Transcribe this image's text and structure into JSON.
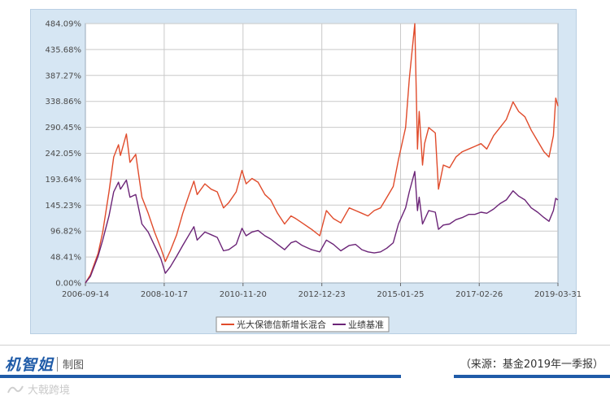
{
  "chart_data": {
    "type": "line",
    "title": "",
    "xlabel": "",
    "ylabel": "",
    "y_tick_labels": [
      "0.00%",
      "48.41%",
      "96.82%",
      "145.23%",
      "193.64%",
      "242.05%",
      "290.45%",
      "338.86%",
      "387.27%",
      "435.68%",
      "484.09%"
    ],
    "x_tick_labels": [
      "2006-09-14",
      "2008-10-17",
      "2010-11-20",
      "2012-12-23",
      "2015-01-25",
      "2017-02-26",
      "2019-03-31"
    ],
    "ylim": [
      0,
      484.09
    ],
    "xlim": [
      "2006-09-14",
      "2019-03-31"
    ],
    "grid": true,
    "legend_position": "bottom-center",
    "series": [
      {
        "name": "光大保德信新增长混合",
        "color": "#e04b2b",
        "points": [
          [
            "2006-09-14",
            0
          ],
          [
            "2006-11-01",
            15
          ],
          [
            "2007-01-15",
            55
          ],
          [
            "2007-03-01",
            95
          ],
          [
            "2007-05-01",
            170
          ],
          [
            "2007-06-15",
            235
          ],
          [
            "2007-08-01",
            258
          ],
          [
            "2007-08-20",
            238
          ],
          [
            "2007-10-16",
            278
          ],
          [
            "2007-11-20",
            225
          ],
          [
            "2008-01-15",
            240
          ],
          [
            "2008-03-15",
            160
          ],
          [
            "2008-05-15",
            130
          ],
          [
            "2008-07-15",
            95
          ],
          [
            "2008-09-15",
            65
          ],
          [
            "2008-10-28",
            40
          ],
          [
            "2008-12-15",
            60
          ],
          [
            "2009-02-15",
            90
          ],
          [
            "2009-04-15",
            130
          ],
          [
            "2009-06-15",
            165
          ],
          [
            "2009-08-01",
            190
          ],
          [
            "2009-09-01",
            165
          ],
          [
            "2009-11-15",
            185
          ],
          [
            "2010-01-15",
            175
          ],
          [
            "2010-03-15",
            170
          ],
          [
            "2010-05-15",
            140
          ],
          [
            "2010-07-05",
            150
          ],
          [
            "2010-09-15",
            170
          ],
          [
            "2010-11-10",
            210
          ],
          [
            "2010-12-20",
            185
          ],
          [
            "2011-02-15",
            195
          ],
          [
            "2011-04-15",
            188
          ],
          [
            "2011-06-20",
            165
          ],
          [
            "2011-08-15",
            155
          ],
          [
            "2011-10-20",
            130
          ],
          [
            "2011-12-28",
            110
          ],
          [
            "2012-02-28",
            125
          ],
          [
            "2012-04-15",
            120
          ],
          [
            "2012-06-15",
            112
          ],
          [
            "2012-09-15",
            100
          ],
          [
            "2012-12-03",
            88
          ],
          [
            "2013-02-05",
            135
          ],
          [
            "2013-04-15",
            120
          ],
          [
            "2013-06-25",
            112
          ],
          [
            "2013-09-15",
            140
          ],
          [
            "2013-11-15",
            135
          ],
          [
            "2014-01-15",
            130
          ],
          [
            "2014-03-15",
            125
          ],
          [
            "2014-05-15",
            135
          ],
          [
            "2014-07-15",
            140
          ],
          [
            "2014-09-15",
            160
          ],
          [
            "2014-11-15",
            180
          ],
          [
            "2015-01-05",
            230
          ],
          [
            "2015-03-15",
            290
          ],
          [
            "2015-04-20",
            380
          ],
          [
            "2015-06-12",
            484
          ],
          [
            "2015-07-08",
            250
          ],
          [
            "2015-07-25",
            320
          ],
          [
            "2015-08-26",
            220
          ],
          [
            "2015-09-15",
            260
          ],
          [
            "2015-10-25",
            290
          ],
          [
            "2015-12-28",
            280
          ],
          [
            "2016-01-28",
            175
          ],
          [
            "2016-03-15",
            220
          ],
          [
            "2016-05-15",
            215
          ],
          [
            "2016-07-15",
            235
          ],
          [
            "2016-09-15",
            245
          ],
          [
            "2016-11-15",
            250
          ],
          [
            "2017-01-15",
            255
          ],
          [
            "2017-03-15",
            260
          ],
          [
            "2017-05-10",
            250
          ],
          [
            "2017-07-15",
            275
          ],
          [
            "2017-09-15",
            290
          ],
          [
            "2017-11-15",
            305
          ],
          [
            "2018-01-20",
            338
          ],
          [
            "2018-03-15",
            320
          ],
          [
            "2018-05-15",
            310
          ],
          [
            "2018-07-15",
            285
          ],
          [
            "2018-09-15",
            265
          ],
          [
            "2018-11-15",
            245
          ],
          [
            "2019-01-03",
            235
          ],
          [
            "2019-02-15",
            275
          ],
          [
            "2019-03-10",
            345
          ],
          [
            "2019-03-31",
            330
          ]
        ]
      },
      {
        "name": "业绩基准",
        "color": "#6b2477",
        "points": [
          [
            "2006-09-14",
            0
          ],
          [
            "2006-11-01",
            12
          ],
          [
            "2007-01-15",
            50
          ],
          [
            "2007-03-01",
            80
          ],
          [
            "2007-05-01",
            125
          ],
          [
            "2007-06-15",
            170
          ],
          [
            "2007-08-01",
            188
          ],
          [
            "2007-08-20",
            175
          ],
          [
            "2007-10-16",
            192
          ],
          [
            "2007-11-20",
            160
          ],
          [
            "2008-01-15",
            165
          ],
          [
            "2008-03-15",
            110
          ],
          [
            "2008-05-15",
            95
          ],
          [
            "2008-07-15",
            70
          ],
          [
            "2008-09-15",
            45
          ],
          [
            "2008-10-28",
            18
          ],
          [
            "2008-12-15",
            30
          ],
          [
            "2009-02-15",
            50
          ],
          [
            "2009-04-15",
            70
          ],
          [
            "2009-06-15",
            90
          ],
          [
            "2009-08-01",
            105
          ],
          [
            "2009-09-01",
            80
          ],
          [
            "2009-11-15",
            95
          ],
          [
            "2010-01-15",
            90
          ],
          [
            "2010-03-15",
            85
          ],
          [
            "2010-05-15",
            60
          ],
          [
            "2010-07-05",
            62
          ],
          [
            "2010-09-15",
            72
          ],
          [
            "2010-11-10",
            102
          ],
          [
            "2010-12-20",
            88
          ],
          [
            "2011-02-15",
            95
          ],
          [
            "2011-04-15",
            98
          ],
          [
            "2011-06-20",
            88
          ],
          [
            "2011-08-15",
            82
          ],
          [
            "2011-10-20",
            72
          ],
          [
            "2011-12-28",
            62
          ],
          [
            "2012-02-28",
            75
          ],
          [
            "2012-04-15",
            78
          ],
          [
            "2012-06-15",
            70
          ],
          [
            "2012-09-15",
            62
          ],
          [
            "2012-12-03",
            58
          ],
          [
            "2013-02-05",
            80
          ],
          [
            "2013-04-15",
            72
          ],
          [
            "2013-06-25",
            60
          ],
          [
            "2013-09-15",
            70
          ],
          [
            "2013-11-15",
            72
          ],
          [
            "2014-01-15",
            62
          ],
          [
            "2014-03-15",
            58
          ],
          [
            "2014-05-15",
            56
          ],
          [
            "2014-07-15",
            58
          ],
          [
            "2014-09-15",
            65
          ],
          [
            "2014-11-15",
            75
          ],
          [
            "2015-01-05",
            110
          ],
          [
            "2015-03-15",
            140
          ],
          [
            "2015-04-20",
            170
          ],
          [
            "2015-06-12",
            208
          ],
          [
            "2015-07-08",
            135
          ],
          [
            "2015-07-25",
            160
          ],
          [
            "2015-08-26",
            110
          ],
          [
            "2015-09-15",
            118
          ],
          [
            "2015-10-25",
            135
          ],
          [
            "2015-12-28",
            132
          ],
          [
            "2016-01-28",
            100
          ],
          [
            "2016-03-15",
            108
          ],
          [
            "2016-05-15",
            110
          ],
          [
            "2016-07-15",
            118
          ],
          [
            "2016-09-15",
            122
          ],
          [
            "2016-11-15",
            128
          ],
          [
            "2017-01-15",
            128
          ],
          [
            "2017-03-15",
            132
          ],
          [
            "2017-05-10",
            130
          ],
          [
            "2017-07-15",
            138
          ],
          [
            "2017-09-15",
            148
          ],
          [
            "2017-11-15",
            155
          ],
          [
            "2018-01-20",
            172
          ],
          [
            "2018-03-15",
            162
          ],
          [
            "2018-05-15",
            155
          ],
          [
            "2018-07-15",
            140
          ],
          [
            "2018-09-15",
            132
          ],
          [
            "2018-11-15",
            122
          ],
          [
            "2019-01-03",
            115
          ],
          [
            "2019-02-15",
            135
          ],
          [
            "2019-03-10",
            158
          ],
          [
            "2019-03-31",
            155
          ]
        ]
      }
    ]
  },
  "legend": {
    "series_a": "光大保德信新增长混合",
    "series_b": "业绩基准"
  },
  "footer": {
    "brand_logo": "机智姐",
    "brand_made": "制图",
    "source": "（来源：基金2019年一季报）",
    "watermark": "大戟跨境"
  },
  "colors": {
    "frame_bg": "#d6e6f3",
    "plot_bg": "#ffffff",
    "grid": "#c9c9c9",
    "accent_blue": "#1f5ba8"
  }
}
